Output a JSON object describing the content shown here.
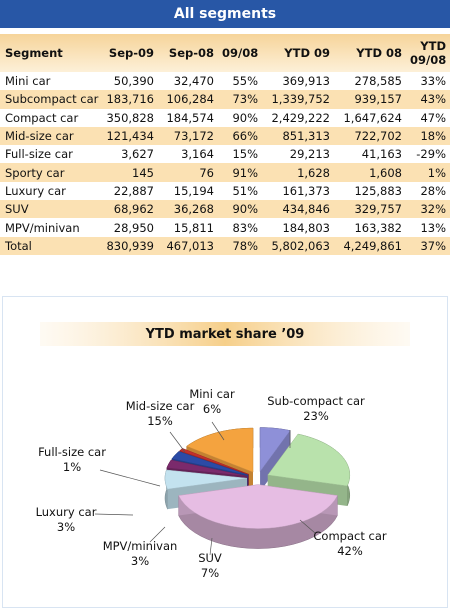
{
  "table": {
    "title": "All segments",
    "columns": [
      "Segment",
      "Sep-09",
      "Sep-08",
      "09/08",
      "YTD 09",
      "YTD 08",
      "YTD 09/08"
    ],
    "rows": [
      [
        "Mini car",
        "50,390",
        "32,470",
        "55%",
        "369,913",
        "278,585",
        "33%"
      ],
      [
        "Subcompact car",
        "183,716",
        "106,284",
        "73%",
        "1,339,752",
        "939,157",
        "43%"
      ],
      [
        "Compact car",
        "350,828",
        "184,574",
        "90%",
        "2,429,222",
        "1,647,624",
        "47%"
      ],
      [
        "Mid-size car",
        "121,434",
        "73,172",
        "66%",
        "851,313",
        "722,702",
        "18%"
      ],
      [
        "Full-size car",
        "3,627",
        "3,164",
        "15%",
        "29,213",
        "41,163",
        "-29%"
      ],
      [
        "Sporty car",
        "145",
        "76",
        "91%",
        "1,628",
        "1,608",
        "1%"
      ],
      [
        "Luxury car",
        "22,887",
        "15,194",
        "51%",
        "161,373",
        "125,883",
        "28%"
      ],
      [
        "SUV",
        "68,962",
        "36,268",
        "90%",
        "434,846",
        "329,757",
        "32%"
      ],
      [
        "MPV/minivan",
        "28,950",
        "15,811",
        "83%",
        "184,803",
        "163,382",
        "13%"
      ],
      [
        "Total",
        "830,939",
        "467,013",
        "78%",
        "5,802,063",
        "4,249,861",
        "37%"
      ]
    ]
  },
  "chart_data": {
    "type": "pie",
    "title": "YTD market share ’09",
    "categories": [
      "Mini car",
      "Sub-compact car",
      "Compact car",
      "SUV",
      "MPV/minivan",
      "Luxury car",
      "Full-size car",
      "Mid-size car"
    ],
    "values": [
      6,
      23,
      42,
      7,
      3,
      3,
      1,
      15
    ],
    "value_labels": [
      "6%",
      "23%",
      "42%",
      "7%",
      "3%",
      "3%",
      "1%",
      "15%"
    ],
    "colors": [
      "#8e90d8",
      "#b9e2ac",
      "#e6bde3",
      "#c3e2ef",
      "#7b2a6c",
      "#2b4ba6",
      "#c2302b",
      "#f4a33f"
    ]
  }
}
